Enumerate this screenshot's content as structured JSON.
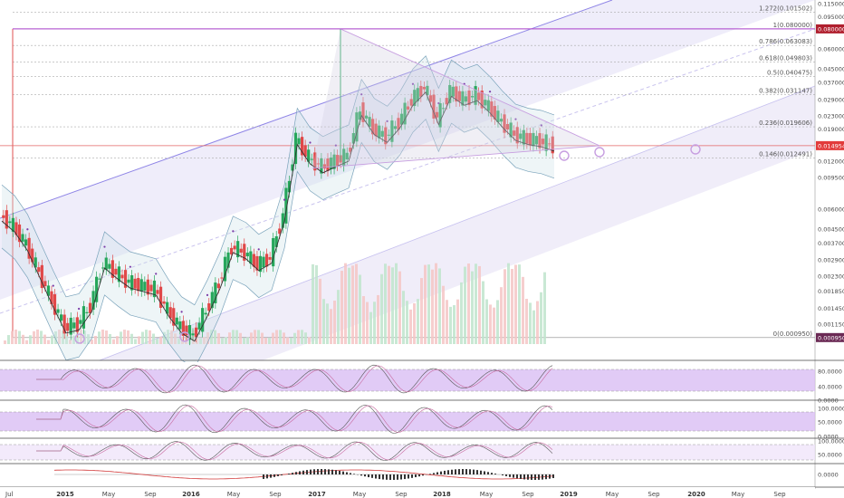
{
  "chart_data": [
    {
      "type": "line",
      "scale": "log",
      "x_axis": {
        "ticks": [
          "Jul",
          "2015",
          "May",
          "Sep",
          "2016",
          "May",
          "Sep",
          "2017",
          "May",
          "Sep",
          "2018",
          "May",
          "Sep",
          "2019",
          "May",
          "Sep",
          "2020",
          "May",
          "Sep"
        ]
      },
      "y_axis": {
        "ticks": [
          "0.115000",
          "0.095000",
          "0.080000",
          "0.060000",
          "0.045000",
          "0.037000",
          "0.029000",
          "0.023000",
          "0.019000",
          "0.014954",
          "0.012000",
          "0.009500",
          "0.006000",
          "0.004500",
          "0.003700",
          "0.002900",
          "0.002300",
          "0.001850",
          "0.001450",
          "0.001150",
          "0.000950"
        ],
        "range": [
          0.00075,
          0.115
        ]
      },
      "last_price": "0.014954",
      "fib_low_price": "0.000950",
      "fib_levels": [
        {
          "label": "1.272(0.101502)",
          "value": 0.101502
        },
        {
          "label": "1(0.080000)",
          "value": 0.08
        },
        {
          "label": "0.786(0.063083)",
          "value": 0.063083
        },
        {
          "label": "0.618(0.049803)",
          "value": 0.049803
        },
        {
          "label": "0.5(0.040475)",
          "value": 0.040475
        },
        {
          "label": "0.382(0.031147)",
          "value": 0.031147
        },
        {
          "label": "0.236(0.019606)",
          "value": 0.019606
        },
        {
          "label": "0.146(0.012491)",
          "value": 0.012491
        },
        {
          "label": "0(0.000950)",
          "value": 0.00095
        }
      ],
      "series": [
        {
          "values": [
            0.0055,
            0.0047,
            0.0036,
            0.0024,
            0.0016,
            0.0011,
            0.00115,
            0.0015,
            0.0028,
            0.0024,
            0.0021,
            0.002,
            0.0019,
            0.0014,
            0.0011,
            0.00098,
            0.0014,
            0.0021,
            0.0035,
            0.0032,
            0.0027,
            0.003,
            0.0055,
            0.0165,
            0.0125,
            0.011,
            0.012,
            0.013,
            0.025,
            0.019,
            0.017,
            0.021,
            0.029,
            0.035,
            0.022,
            0.033,
            0.029,
            0.031,
            0.026,
            0.021,
            0.0175,
            0.0165,
            0.016,
            0.015
          ]
        }
      ]
    },
    {
      "type": "line",
      "y_axis": {
        "ticks": [
          "80.0000",
          "40.0000",
          "0.0000"
        ]
      }
    },
    {
      "type": "line",
      "y_axis": {
        "ticks": [
          "100.0000",
          "50.0000",
          "0.0000"
        ]
      }
    },
    {
      "type": "line",
      "y_axis": {
        "ticks": [
          "100.0000",
          "50.0000"
        ]
      }
    },
    {
      "type": "line",
      "y_axis": {
        "ticks": [
          "0.0000"
        ]
      }
    }
  ]
}
